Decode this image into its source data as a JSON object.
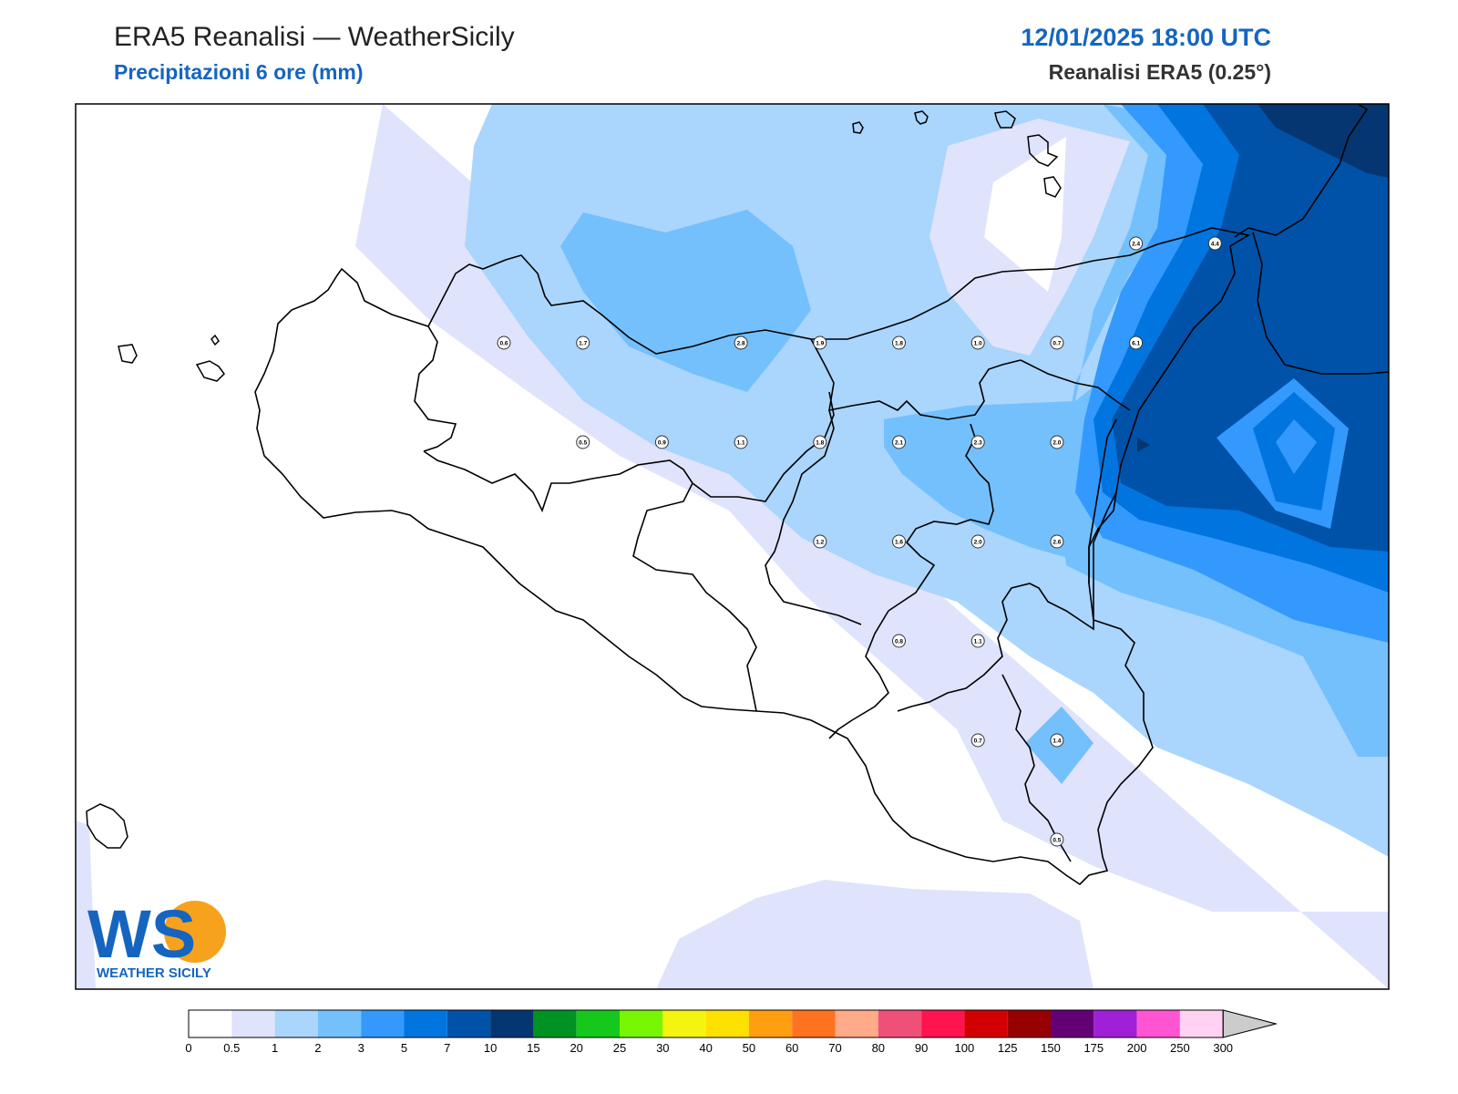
{
  "header": {
    "title": "ERA5 Reanalisi — WeatherSicily",
    "subtitle": "Precipitazioni 6 ore (mm)",
    "datetime": "12/01/2025 18:00 UTC",
    "model": "Reanalisi ERA5 (0.25°)"
  },
  "logo": {
    "letters": "WS",
    "text": "WEATHER SICILY"
  },
  "colors": {
    "l0": "#ffffff",
    "l1": "#e0e3fc",
    "l2": "#aad5fd",
    "l3": "#74c0fd",
    "l4": "#3399fd",
    "l5": "#0075e0",
    "l6": "#0052a8",
    "l7": "#063672",
    "accent": "#1565c0"
  },
  "legend": {
    "colors": [
      "#ffffff",
      "#e0e3fc",
      "#aad5fd",
      "#74c0fd",
      "#3399fd",
      "#0075e0",
      "#0052a8",
      "#063672",
      "#009223",
      "#14c91c",
      "#78f500",
      "#f3f510",
      "#ffe100",
      "#ff9f10",
      "#ff7320",
      "#ffaa88",
      "#f05078",
      "#ff1450",
      "#d20000",
      "#960000",
      "#640076",
      "#a020d8",
      "#ff55d2",
      "#ffd2f4"
    ],
    "ticks": [
      "0",
      "0.5",
      "1",
      "2",
      "3",
      "5",
      "7",
      "10",
      "15",
      "20",
      "25",
      "30",
      "40",
      "50",
      "60",
      "70",
      "80",
      "90",
      "100",
      "125",
      "150",
      "175",
      "200",
      "250",
      "300"
    ]
  },
  "stations": [
    {
      "v": "0.6",
      "c": 0,
      "r": 0
    },
    {
      "v": "1.7",
      "c": 1,
      "r": 0
    },
    {
      "v": "2.8",
      "c": 3,
      "r": 0
    },
    {
      "v": "1.9",
      "c": 4,
      "r": 0
    },
    {
      "v": "1.8",
      "c": 5,
      "r": 0
    },
    {
      "v": "1.0",
      "c": 6,
      "r": 0
    },
    {
      "v": "0.7",
      "c": 7,
      "r": 0
    },
    {
      "v": "6.1",
      "c": 8,
      "r": 0
    },
    {
      "v": "0.5",
      "c": 1,
      "r": 1
    },
    {
      "v": "0.9",
      "c": 2,
      "r": 1
    },
    {
      "v": "1.1",
      "c": 3,
      "r": 1
    },
    {
      "v": "1.8",
      "c": 4,
      "r": 1
    },
    {
      "v": "2.1",
      "c": 5,
      "r": 1
    },
    {
      "v": "2.3",
      "c": 6,
      "r": 1
    },
    {
      "v": "2.0",
      "c": 7,
      "r": 1
    },
    {
      "v": "1.2",
      "c": 4,
      "r": 2
    },
    {
      "v": "1.6",
      "c": 5,
      "r": 2
    },
    {
      "v": "2.0",
      "c": 6,
      "r": 2
    },
    {
      "v": "2.6",
      "c": 7,
      "r": 2
    },
    {
      "v": "0.8",
      "c": 5,
      "r": 3
    },
    {
      "v": "1.1",
      "c": 6,
      "r": 3
    },
    {
      "v": "0.7",
      "c": 6,
      "r": 4
    },
    {
      "v": "1.4",
      "c": 7,
      "r": 4
    },
    {
      "v": "0.5",
      "c": 7,
      "r": 5
    },
    {
      "v": "2.4",
      "c": 8,
      "r": -1
    },
    {
      "v": "4.4",
      "c": 9,
      "r": -1
    }
  ]
}
